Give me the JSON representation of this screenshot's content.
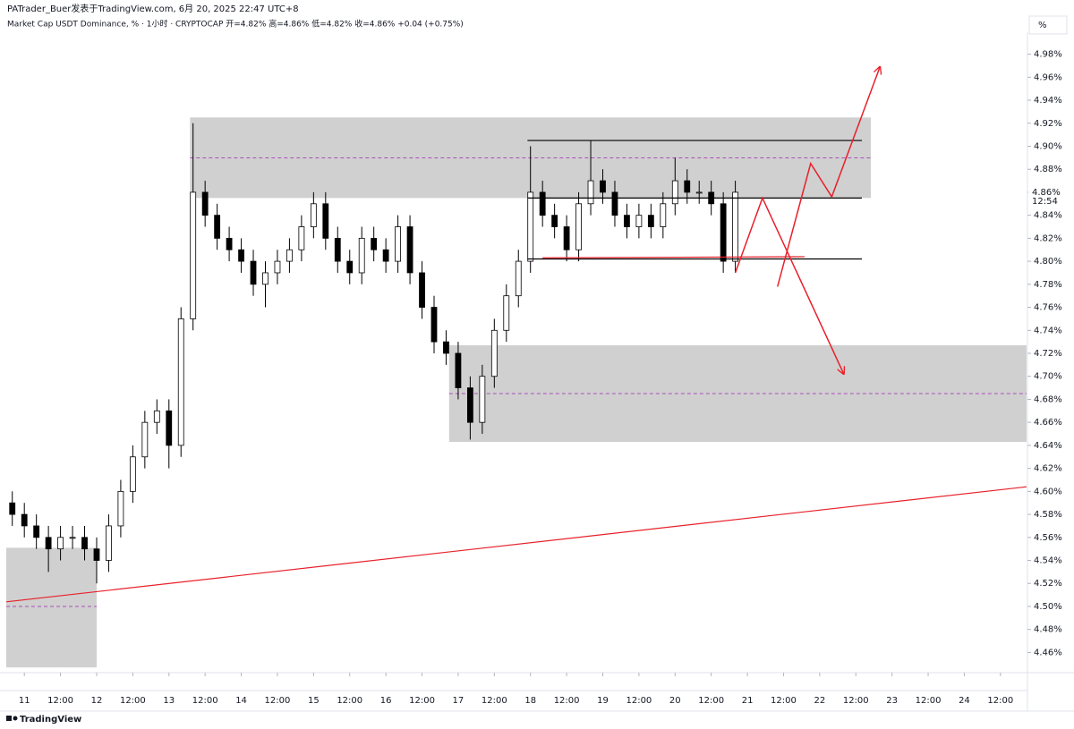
{
  "chart_data": {
    "type": "candlestick",
    "source": "PATrader_Buer发表于TradingView.com,  6月 20, 2025 22:47 UTC+8",
    "title": "Market Cap USDT Dominance, % · 1小时 · CRYPTOCAP  开=4.82%  高=4.86%  低=4.82%  收=4.86%  +0.04 (+0.75%)",
    "unit_label": "%",
    "brand": "TradingView",
    "last_price_label": "4.86%",
    "countdown": "12:54",
    "last_price": 4.86,
    "up_color": "#ffffff",
    "down_color": "#000000",
    "wick_color": "#000000",
    "x": [
      "2025-06-10T20:00",
      "2025-06-11T00:00",
      "2025-06-11T04:00",
      "2025-06-11T08:00",
      "2025-06-11T12:00",
      "2025-06-11T16:00",
      "2025-06-11T20:00",
      "2025-06-12T00:00",
      "2025-06-12T04:00",
      "2025-06-12T08:00",
      "2025-06-12T12:00",
      "2025-06-12T16:00",
      "2025-06-12T20:00",
      "2025-06-13T00:00",
      "2025-06-13T04:00",
      "2025-06-13T08:00",
      "2025-06-13T12:00",
      "2025-06-13T16:00",
      "2025-06-13T20:00",
      "2025-06-14T00:00",
      "2025-06-14T04:00",
      "2025-06-14T08:00",
      "2025-06-14T12:00",
      "2025-06-14T16:00",
      "2025-06-14T20:00",
      "2025-06-15T00:00",
      "2025-06-15T04:00",
      "2025-06-15T08:00",
      "2025-06-15T12:00",
      "2025-06-15T16:00",
      "2025-06-15T20:00",
      "2025-06-16T00:00",
      "2025-06-16T04:00",
      "2025-06-16T08:00",
      "2025-06-16T12:00",
      "2025-06-16T16:00",
      "2025-06-16T20:00",
      "2025-06-17T00:00",
      "2025-06-17T04:00",
      "2025-06-17T08:00",
      "2025-06-17T12:00",
      "2025-06-17T16:00",
      "2025-06-17T20:00",
      "2025-06-18T00:00",
      "2025-06-18T04:00",
      "2025-06-18T08:00",
      "2025-06-18T12:00",
      "2025-06-18T16:00",
      "2025-06-18T20:00",
      "2025-06-19T00:00",
      "2025-06-19T04:00",
      "2025-06-19T08:00",
      "2025-06-19T12:00",
      "2025-06-19T16:00",
      "2025-06-19T20:00",
      "2025-06-20T00:00",
      "2025-06-20T04:00",
      "2025-06-20T08:00",
      "2025-06-20T12:00",
      "2025-06-20T16:00",
      "2025-06-20T20:00"
    ],
    "open": [
      4.59,
      4.58,
      4.57,
      4.56,
      4.55,
      4.56,
      4.56,
      4.55,
      4.54,
      4.57,
      4.6,
      4.63,
      4.66,
      4.67,
      4.64,
      4.75,
      4.86,
      4.84,
      4.82,
      4.81,
      4.8,
      4.78,
      4.79,
      4.8,
      4.81,
      4.83,
      4.85,
      4.82,
      4.8,
      4.79,
      4.82,
      4.81,
      4.8,
      4.83,
      4.79,
      4.76,
      4.73,
      4.72,
      4.69,
      4.66,
      4.7,
      4.74,
      4.77,
      4.8,
      4.86,
      4.84,
      4.83,
      4.81,
      4.85,
      4.87,
      4.86,
      4.84,
      4.83,
      4.84,
      4.83,
      4.85,
      4.87,
      4.86,
      4.86,
      4.85,
      4.8
    ],
    "high": [
      4.6,
      4.59,
      4.58,
      4.57,
      4.57,
      4.57,
      4.57,
      4.56,
      4.58,
      4.61,
      4.64,
      4.67,
      4.68,
      4.68,
      4.76,
      4.92,
      4.87,
      4.85,
      4.83,
      4.82,
      4.81,
      4.8,
      4.81,
      4.82,
      4.84,
      4.86,
      4.86,
      4.83,
      4.81,
      4.83,
      4.83,
      4.82,
      4.84,
      4.84,
      4.8,
      4.77,
      4.74,
      4.73,
      4.7,
      4.71,
      4.75,
      4.78,
      4.81,
      4.9,
      4.87,
      4.85,
      4.84,
      4.86,
      4.905,
      4.88,
      4.87,
      4.85,
      4.85,
      4.85,
      4.86,
      4.89,
      4.88,
      4.87,
      4.87,
      4.86,
      4.87
    ],
    "low": [
      4.57,
      4.56,
      4.55,
      4.53,
      4.54,
      4.55,
      4.54,
      4.52,
      4.53,
      4.56,
      4.59,
      4.62,
      4.65,
      4.62,
      4.63,
      4.74,
      4.83,
      4.81,
      4.8,
      4.79,
      4.77,
      4.76,
      4.78,
      4.79,
      4.8,
      4.82,
      4.81,
      4.79,
      4.78,
      4.78,
      4.8,
      4.79,
      4.79,
      4.78,
      4.75,
      4.72,
      4.71,
      4.68,
      4.645,
      4.65,
      4.69,
      4.73,
      4.76,
      4.79,
      4.83,
      4.82,
      4.8,
      4.8,
      4.84,
      4.85,
      4.83,
      4.82,
      4.82,
      4.82,
      4.82,
      4.84,
      4.85,
      4.85,
      4.84,
      4.79,
      4.79
    ],
    "close": [
      4.58,
      4.57,
      4.56,
      4.55,
      4.56,
      4.56,
      4.55,
      4.54,
      4.57,
      4.6,
      4.63,
      4.66,
      4.67,
      4.64,
      4.75,
      4.86,
      4.84,
      4.82,
      4.81,
      4.8,
      4.78,
      4.79,
      4.8,
      4.81,
      4.83,
      4.85,
      4.82,
      4.8,
      4.79,
      4.82,
      4.81,
      4.8,
      4.83,
      4.79,
      4.76,
      4.73,
      4.72,
      4.69,
      4.66,
      4.7,
      4.74,
      4.77,
      4.8,
      4.86,
      4.84,
      4.83,
      4.81,
      4.85,
      4.87,
      4.86,
      4.84,
      4.83,
      4.84,
      4.83,
      4.85,
      4.87,
      4.86,
      4.86,
      4.85,
      4.8,
      4.86
    ],
    "xlim": [
      "2025-06-10T18:00",
      "2025-06-24T20:40"
    ],
    "ylim": [
      4.444,
      4.996
    ],
    "xticks": [
      {
        "value": "2025-06-11T00:00",
        "label": "11"
      },
      {
        "value": "2025-06-11T12:00",
        "label": "12:00"
      },
      {
        "value": "2025-06-12T00:00",
        "label": "12"
      },
      {
        "value": "2025-06-12T12:00",
        "label": "12:00"
      },
      {
        "value": "2025-06-13T00:00",
        "label": "13"
      },
      {
        "value": "2025-06-13T12:00",
        "label": "12:00"
      },
      {
        "value": "2025-06-14T00:00",
        "label": "14"
      },
      {
        "value": "2025-06-14T12:00",
        "label": "12:00"
      },
      {
        "value": "2025-06-15T00:00",
        "label": "15"
      },
      {
        "value": "2025-06-15T12:00",
        "label": "12:00"
      },
      {
        "value": "2025-06-16T00:00",
        "label": "16"
      },
      {
        "value": "2025-06-16T12:00",
        "label": "12:00"
      },
      {
        "value": "2025-06-17T00:00",
        "label": "17"
      },
      {
        "value": "2025-06-17T12:00",
        "label": "12:00"
      },
      {
        "value": "2025-06-18T00:00",
        "label": "18"
      },
      {
        "value": "2025-06-18T12:00",
        "label": "12:00"
      },
      {
        "value": "2025-06-19T00:00",
        "label": "19"
      },
      {
        "value": "2025-06-19T12:00",
        "label": "12:00"
      },
      {
        "value": "2025-06-20T00:00",
        "label": "20"
      },
      {
        "value": "2025-06-20T12:00",
        "label": "12:00"
      },
      {
        "value": "2025-06-21T00:00",
        "label": "21"
      },
      {
        "value": "2025-06-21T12:00",
        "label": "12:00"
      },
      {
        "value": "2025-06-22T00:00",
        "label": "22"
      },
      {
        "value": "2025-06-22T12:00",
        "label": "12:00"
      },
      {
        "value": "2025-06-23T00:00",
        "label": "23"
      },
      {
        "value": "2025-06-23T12:00",
        "label": "12:00"
      },
      {
        "value": "2025-06-24T00:00",
        "label": "24"
      },
      {
        "value": "2025-06-24T12:00",
        "label": "12:00"
      }
    ],
    "yticks": [
      {
        "value": 4.46,
        "label": "4.46%"
      },
      {
        "value": 4.48,
        "label": "4.48%"
      },
      {
        "value": 4.5,
        "label": "4.50%"
      },
      {
        "value": 4.52,
        "label": "4.52%"
      },
      {
        "value": 4.54,
        "label": "4.54%"
      },
      {
        "value": 4.56,
        "label": "4.56%"
      },
      {
        "value": 4.58,
        "label": "4.58%"
      },
      {
        "value": 4.6,
        "label": "4.60%"
      },
      {
        "value": 4.62,
        "label": "4.62%"
      },
      {
        "value": 4.64,
        "label": "4.64%"
      },
      {
        "value": 4.66,
        "label": "4.66%"
      },
      {
        "value": 4.68,
        "label": "4.68%"
      },
      {
        "value": 4.7,
        "label": "4.70%"
      },
      {
        "value": 4.72,
        "label": "4.72%"
      },
      {
        "value": 4.74,
        "label": "4.74%"
      },
      {
        "value": 4.76,
        "label": "4.76%"
      },
      {
        "value": 4.78,
        "label": "4.78%"
      },
      {
        "value": 4.8,
        "label": "4.80%"
      },
      {
        "value": 4.82,
        "label": "4.82%"
      },
      {
        "value": 4.84,
        "label": "4.84%"
      },
      {
        "value": 4.86,
        "label": "4.86%"
      },
      {
        "value": 4.88,
        "label": "4.88%"
      },
      {
        "value": 4.9,
        "label": "4.90%"
      },
      {
        "value": 4.92,
        "label": "4.92%"
      },
      {
        "value": 4.94,
        "label": "4.94%"
      },
      {
        "value": 4.96,
        "label": "4.96%"
      },
      {
        "value": 4.98,
        "label": "4.98%"
      }
    ],
    "zones": [
      {
        "x": [
          "2025-06-13T07:00",
          "2025-06-22T17:00"
        ],
        "y": [
          4.855,
          4.925
        ],
        "mid": 4.89,
        "color": "#d0d0d0"
      },
      {
        "x": [
          "2025-06-16T21:00",
          "2025-06-24T20:40"
        ],
        "y": [
          4.643,
          4.727
        ],
        "mid": 4.685,
        "color": "#d0d0d0"
      },
      {
        "x": [
          "2025-06-10T18:00",
          "2025-06-12T00:00"
        ],
        "y": [
          4.447,
          4.551
        ],
        "mid": 4.5,
        "color": "#d0d0d0"
      }
    ],
    "lines": [
      {
        "x": [
          "2025-06-17T23:00",
          "2025-06-22T14:00"
        ],
        "y": [
          4.905,
          4.905
        ],
        "color": "#000000"
      },
      {
        "x": [
          "2025-06-17T23:00",
          "2025-06-22T14:00"
        ],
        "y": [
          4.855,
          4.855
        ],
        "color": "#000000"
      },
      {
        "x": [
          "2025-06-17T23:00",
          "2025-06-22T14:00"
        ],
        "y": [
          4.802,
          4.802
        ],
        "color": "#000000"
      },
      {
        "x": [
          "2025-06-18T04:00",
          "2025-06-21T19:00"
        ],
        "y": [
          4.803,
          4.804
        ],
        "color": "#e8202a"
      },
      {
        "x": [
          "2025-06-10T18:00",
          "2025-06-24T20:40"
        ],
        "y": [
          4.504,
          4.604
        ],
        "color": "#e8202a"
      }
    ],
    "arrows": [
      {
        "x": [
          "2025-06-20T20:00",
          "2025-06-21T05:00",
          "2025-06-22T08:00"
        ],
        "y": [
          4.79,
          4.855,
          4.702
        ],
        "color": "#e8202a"
      },
      {
        "x": [
          "2025-06-21T10:00",
          "2025-06-21T21:00",
          "2025-06-22T04:00",
          "2025-06-22T20:00"
        ],
        "y": [
          4.778,
          4.885,
          4.856,
          4.969
        ],
        "color": "#e8202a"
      }
    ]
  }
}
